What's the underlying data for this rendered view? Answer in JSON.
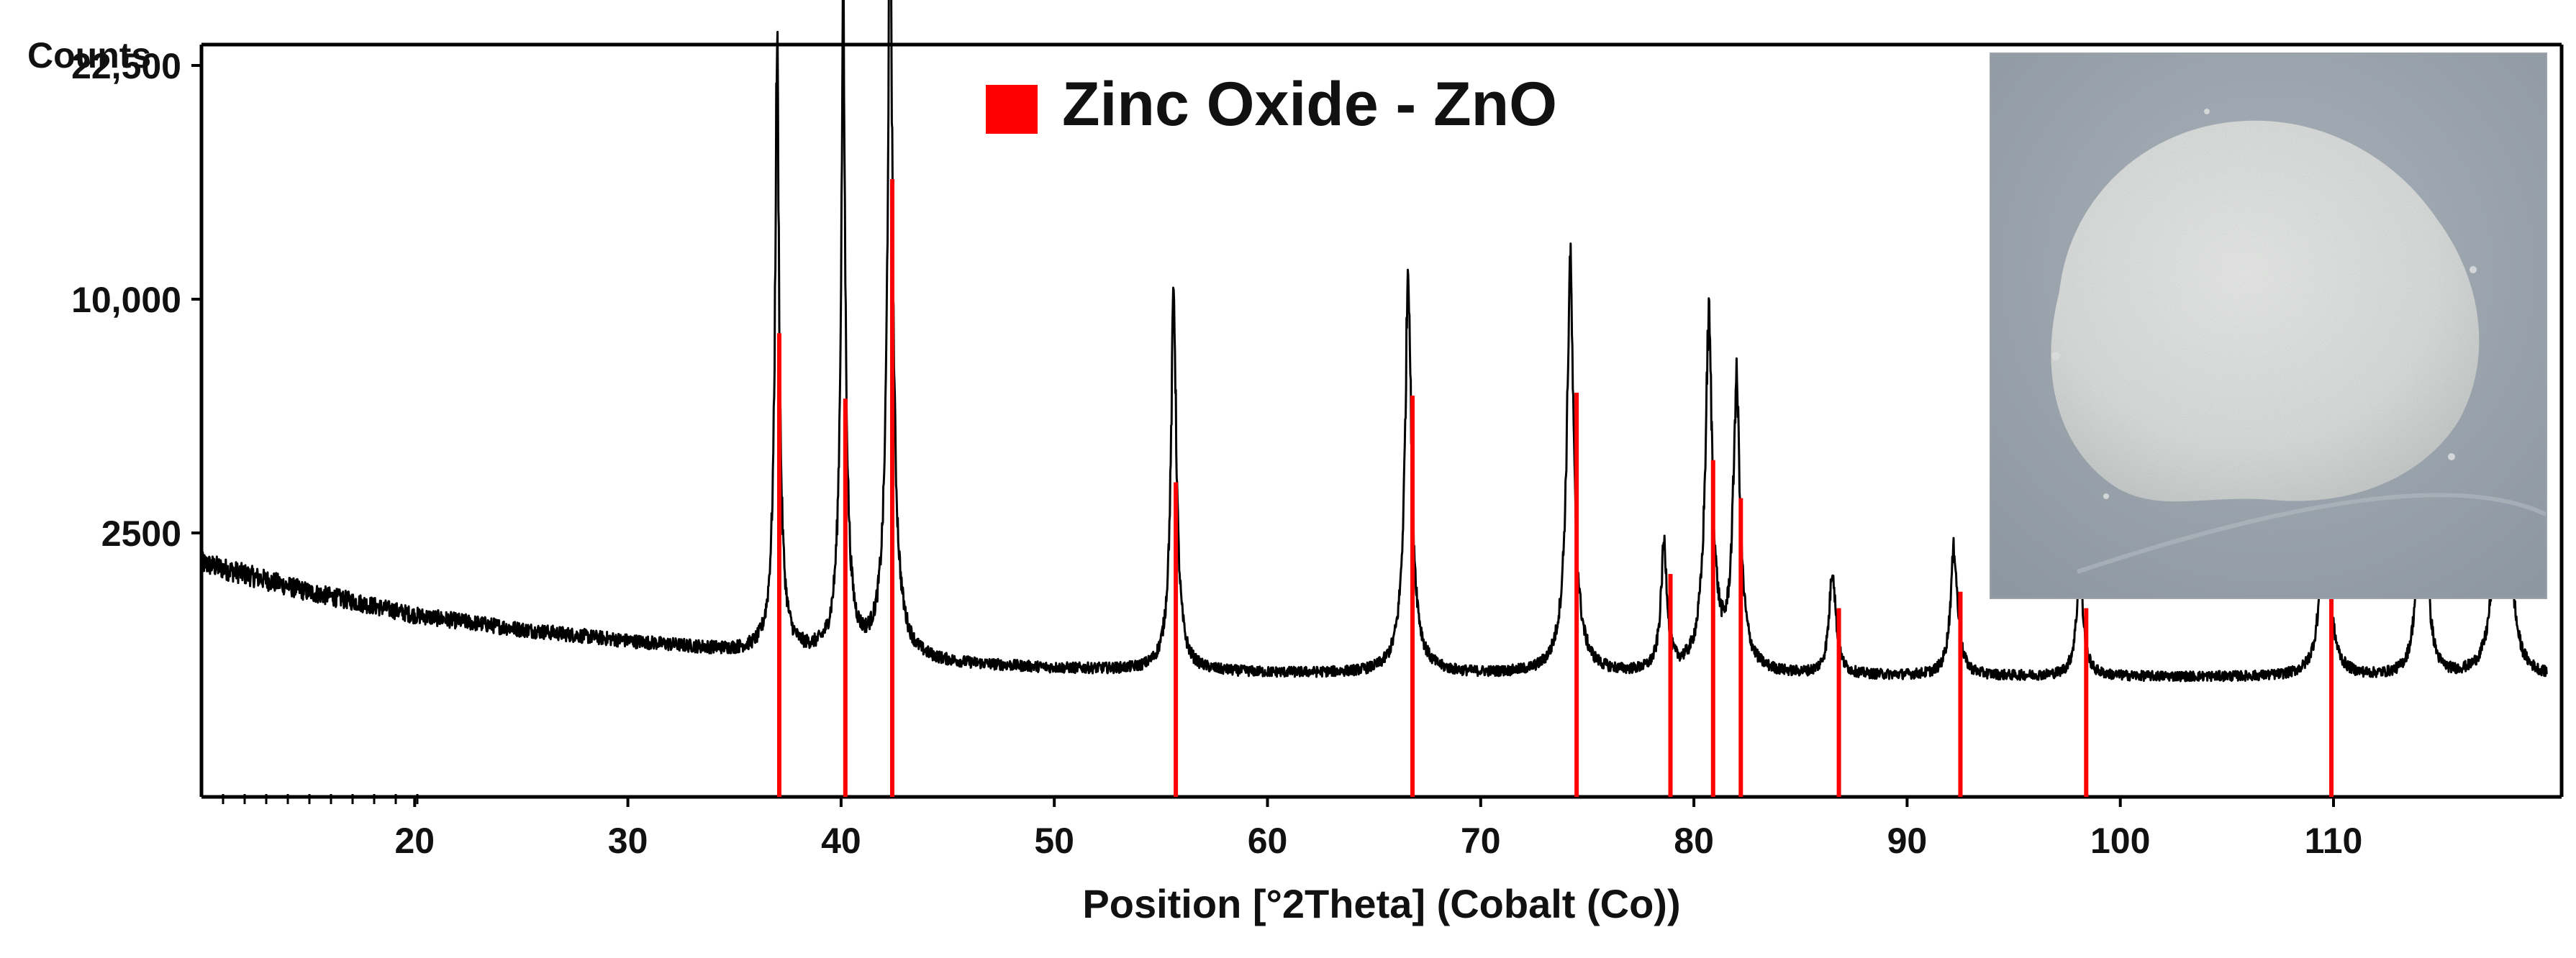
{
  "chart_data": {
    "type": "line",
    "title": "",
    "xlabel": "Position [°2Theta] (Cobalt (Co))",
    "ylabel": "Counts",
    "xlim": [
      10,
      120
    ],
    "x_ticks": [
      20,
      30,
      40,
      50,
      60,
      70,
      80,
      90,
      100,
      110
    ],
    "y_ticks": [
      {
        "label": "2500",
        "value": 2500
      },
      {
        "label": "10,000",
        "value": 10000
      },
      {
        "label": "22,500",
        "value": 22500
      }
    ],
    "y_scale": "sqrt",
    "grid": false,
    "legend": {
      "position": "top-center",
      "entries": [
        {
          "label": "Zinc Oxide - ZnO",
          "color": "#ff0000"
        }
      ]
    },
    "series": [
      {
        "kind": "measured-pattern",
        "color": "#000000",
        "background": [
          [
            10,
            1900
          ],
          [
            15,
            1400
          ],
          [
            20,
            1050
          ],
          [
            25,
            860
          ],
          [
            30,
            720
          ],
          [
            35,
            610
          ],
          [
            40,
            540
          ],
          [
            45,
            480
          ],
          [
            50,
            440
          ],
          [
            60,
            400
          ],
          [
            80,
            380
          ],
          [
            100,
            370
          ],
          [
            120,
            360
          ]
        ],
        "peaks": [
          {
            "x": 37.0,
            "y": 23500
          },
          {
            "x": 40.1,
            "y": 25500
          },
          {
            "x": 42.3,
            "y": 37500
          },
          {
            "x": 55.6,
            "y": 10100
          },
          {
            "x": 66.6,
            "y": 11200
          },
          {
            "x": 74.2,
            "y": 11200
          },
          {
            "x": 78.6,
            "y": 1850
          },
          {
            "x": 80.7,
            "y": 8800
          },
          {
            "x": 82.0,
            "y": 6400
          },
          {
            "x": 86.5,
            "y": 1400
          },
          {
            "x": 92.2,
            "y": 1800
          },
          {
            "x": 98.1,
            "y": 1250
          },
          {
            "x": 109.6,
            "y": 3000
          },
          {
            "x": 114.0,
            "y": 1500
          },
          {
            "x": 114.4,
            "y": 850
          },
          {
            "x": 117.7,
            "y": 3100
          },
          {
            "x": 118.2,
            "y": 2100
          }
        ]
      },
      {
        "name": "Zinc Oxide - ZnO",
        "kind": "reference-sticks",
        "color": "#ff0000",
        "x": [
          37.1,
          40.2,
          42.4,
          55.7,
          66.8,
          74.5,
          78.9,
          80.9,
          82.2,
          86.8,
          92.5,
          98.4,
          109.9
        ],
        "y": [
          8600,
          6200,
          15800,
          3700,
          6300,
          6400,
          1700,
          4300,
          3300,
          1150,
          1400,
          1150,
          2300
        ]
      }
    ]
  },
  "photo": {
    "subject": "zinc-oxide-powder-sample",
    "background_color": "#9ea7b0",
    "powder_color": "#dcdfdd"
  }
}
